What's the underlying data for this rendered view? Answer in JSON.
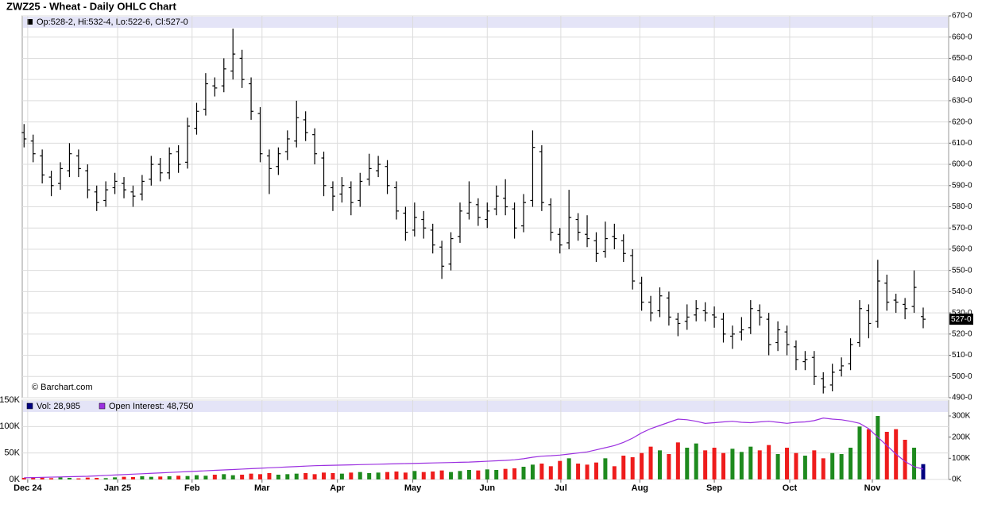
{
  "chart_data": [
    {
      "type": "ohlc",
      "title": "ZWZ25 - Wheat - Daily OHLC Chart",
      "header": "Op:528-2, Hi:532-4, Lo:522-6, Cl:527-0",
      "watermark": "© Barchart.com",
      "color": "#000000",
      "open": [
        615,
        611,
        604,
        594,
        591,
        597,
        604,
        597,
        587,
        583,
        589,
        591,
        587,
        586,
        593,
        600,
        596,
        606,
        601,
        617,
        626,
        637,
        637,
        644,
        650,
        638,
        624,
        604,
        599,
        606,
        611,
        621,
        614,
        603,
        589,
        586,
        589,
        583,
        593,
        597,
        599,
        589,
        577,
        569,
        574,
        569,
        561,
        553,
        566,
        577,
        581,
        574,
        579,
        584,
        579,
        571,
        583,
        606,
        581,
        567,
        563,
        574,
        567,
        564,
        559,
        566,
        564,
        557,
        544,
        535,
        531,
        537,
        527,
        526,
        529,
        531,
        529,
        527,
        519,
        521,
        523,
        531,
        527,
        516,
        521,
        514,
        507,
        509,
        499,
        496,
        503,
        506,
        516,
        531,
        526,
        544,
        536,
        534,
        533,
        528.25
      ],
      "high": [
        619,
        614,
        607,
        597,
        601,
        610,
        607,
        600,
        590,
        592,
        596,
        594,
        590,
        595,
        604,
        603,
        608,
        609,
        622,
        629,
        643,
        641,
        650,
        664,
        654,
        641,
        627,
        607,
        608,
        616,
        630,
        625,
        617,
        606,
        592,
        594,
        592,
        596,
        605,
        604,
        602,
        592,
        580,
        582,
        578,
        572,
        564,
        568,
        582,
        592,
        584,
        582,
        590,
        593,
        582,
        586,
        616,
        609,
        584,
        570,
        588,
        577,
        576,
        568,
        573,
        572,
        567,
        560,
        547,
        538,
        542,
        540,
        530,
        534,
        536,
        535,
        533,
        530,
        524,
        528,
        536,
        534,
        530,
        526,
        524,
        517,
        512,
        512,
        502,
        506,
        509,
        518,
        536,
        534,
        555,
        548,
        539,
        537,
        550,
        532.5
      ],
      "low": [
        608,
        601,
        591,
        585,
        588,
        594,
        594,
        584,
        578,
        580,
        586,
        584,
        580,
        583,
        590,
        592,
        593,
        596,
        598,
        614,
        623,
        632,
        634,
        640,
        636,
        621,
        601,
        586,
        595,
        602,
        608,
        611,
        600,
        585,
        578,
        582,
        576,
        580,
        590,
        594,
        586,
        574,
        564,
        566,
        565,
        558,
        546,
        550,
        563,
        574,
        571,
        570,
        576,
        576,
        565,
        568,
        580,
        578,
        564,
        558,
        560,
        564,
        561,
        554,
        556,
        560,
        554,
        541,
        531,
        526,
        528,
        524,
        519,
        522,
        526,
        526,
        523,
        516,
        513,
        517,
        520,
        524,
        510,
        512,
        510,
        503,
        503,
        496,
        492,
        493,
        500,
        503,
        514,
        518,
        523,
        531,
        530,
        527,
        530,
        522.75
      ],
      "close": [
        612,
        605,
        595,
        590,
        598,
        605,
        598,
        588,
        582,
        588,
        592,
        588,
        585,
        592,
        600,
        596,
        605,
        600,
        618,
        625,
        638,
        636,
        645,
        652,
        640,
        625,
        605,
        598,
        605,
        612,
        622,
        615,
        605,
        590,
        585,
        590,
        582,
        592,
        598,
        600,
        590,
        578,
        568,
        575,
        570,
        562,
        552,
        565,
        578,
        582,
        575,
        578,
        585,
        580,
        570,
        582,
        608,
        582,
        568,
        562,
        575,
        568,
        565,
        558,
        565,
        565,
        558,
        545,
        535,
        530,
        538,
        528,
        525,
        528,
        532,
        530,
        528,
        520,
        520,
        522,
        532,
        528,
        515,
        522,
        515,
        508,
        508,
        500,
        495,
        502,
        505,
        515,
        532,
        525,
        545,
        535,
        535,
        532,
        542,
        527
      ],
      "last_price": {
        "value": 527,
        "label": "527-0"
      },
      "ylim": [
        490,
        670
      ],
      "yticks": [
        {
          "value": 490,
          "label": "490-0"
        },
        {
          "value": 500,
          "label": "500-0"
        },
        {
          "value": 510,
          "label": "510-0"
        },
        {
          "value": 520,
          "label": "520-0"
        },
        {
          "value": 530,
          "label": "530-0"
        },
        {
          "value": 540,
          "label": "540-0"
        },
        {
          "value": 550,
          "label": "550-0"
        },
        {
          "value": 560,
          "label": "560-0"
        },
        {
          "value": 570,
          "label": "570-0"
        },
        {
          "value": 580,
          "label": "580-0"
        },
        {
          "value": 590,
          "label": "590-0"
        },
        {
          "value": 600,
          "label": "600-0"
        },
        {
          "value": 610,
          "label": "610-0"
        },
        {
          "value": 620,
          "label": "620-0"
        },
        {
          "value": 630,
          "label": "630-0"
        },
        {
          "value": 640,
          "label": "640-0"
        },
        {
          "value": 650,
          "label": "650-0"
        },
        {
          "value": 660,
          "label": "660-0"
        },
        {
          "value": 670,
          "label": "670-0"
        }
      ],
      "xlim": [
        -0.2,
        101.8
      ],
      "grid": true
    },
    {
      "type": "volume",
      "up_color": "#1e8a1e",
      "down_color": "#ee1c1c",
      "series": [
        {
          "name": "Vol: 28,985",
          "color": "#000080",
          "values": [
            3000,
            4000,
            3500,
            2500,
            4000,
            3000,
            2000,
            3500,
            3000,
            2500,
            4000,
            5000,
            4500,
            6000,
            5000,
            5500,
            6000,
            7000,
            6500,
            8000,
            7000,
            9000,
            10000,
            8000,
            9000,
            11000,
            10000,
            12000,
            9000,
            10000,
            11000,
            12000,
            10000,
            13000,
            12000,
            11000,
            13000,
            14000,
            12000,
            13000,
            14000,
            15000,
            13000,
            16000,
            14000,
            15000,
            17000,
            14000,
            16000,
            18000,
            17000,
            19000,
            18000,
            20000,
            21000,
            24000,
            28000,
            30000,
            25000,
            35000,
            40000,
            30000,
            28000,
            32000,
            40000,
            25000,
            45000,
            42000,
            50000,
            62000,
            55000,
            48000,
            70000,
            60000,
            68000,
            55000,
            60000,
            50000,
            58000,
            52000,
            62000,
            55000,
            65000,
            48000,
            60000,
            50000,
            45000,
            55000,
            40000,
            50000,
            48000,
            60000,
            100000,
            95000,
            120000,
            90000,
            95000,
            75000,
            60000,
            28985
          ]
        },
        {
          "name": "Open Interest: 48,750",
          "color": "#9b30e0",
          "axis": "y2",
          "values": [
            8000,
            9000,
            10000,
            11000,
            12000,
            13000,
            14000,
            15000,
            17000,
            19000,
            21000,
            23000,
            25000,
            27000,
            29000,
            31000,
            33000,
            35000,
            37000,
            39000,
            41000,
            43000,
            45000,
            47000,
            49000,
            51000,
            53000,
            55000,
            57000,
            59000,
            61000,
            63000,
            65000,
            66000,
            67000,
            68000,
            69000,
            70000,
            71000,
            72000,
            73000,
            74000,
            75000,
            76000,
            77000,
            78000,
            79000,
            80000,
            81000,
            82000,
            84000,
            86000,
            88000,
            90000,
            93000,
            98000,
            105000,
            110000,
            112000,
            115000,
            120000,
            125000,
            130000,
            140000,
            150000,
            160000,
            175000,
            195000,
            220000,
            240000,
            255000,
            270000,
            285000,
            282000,
            275000,
            265000,
            268000,
            272000,
            275000,
            270000,
            268000,
            272000,
            275000,
            270000,
            265000,
            270000,
            272000,
            278000,
            290000,
            285000,
            282000,
            275000,
            265000,
            240000,
            200000,
            160000,
            120000,
            85000,
            60000,
            48750
          ]
        }
      ],
      "ylim": [
        0,
        150000
      ],
      "yticks": [
        {
          "value": 0,
          "label": "0K"
        },
        {
          "value": 50000,
          "label": "50K"
        },
        {
          "value": 100000,
          "label": "100K"
        },
        {
          "value": 150000,
          "label": "150K"
        }
      ],
      "y2lim": [
        0,
        375000
      ],
      "y2ticks": [
        {
          "value": 0,
          "label": "0K"
        },
        {
          "value": 100000,
          "label": "100K"
        },
        {
          "value": 200000,
          "label": "200K"
        },
        {
          "value": 300000,
          "label": "300K"
        }
      ],
      "xlim": [
        -0.2,
        101.8
      ],
      "xticks": [
        {
          "value": 0.4,
          "label": "Dec 24"
        },
        {
          "value": 10.3,
          "label": "Jan 25"
        },
        {
          "value": 18.5,
          "label": "Feb"
        },
        {
          "value": 26.2,
          "label": "Mar"
        },
        {
          "value": 34.5,
          "label": "Apr"
        },
        {
          "value": 42.8,
          "label": "May"
        },
        {
          "value": 51,
          "label": "Jun"
        },
        {
          "value": 59.1,
          "label": "Jul"
        },
        {
          "value": 67.8,
          "label": "Aug"
        },
        {
          "value": 76,
          "label": "Sep"
        },
        {
          "value": 84.3,
          "label": "Oct"
        },
        {
          "value": 93.4,
          "label": "Nov"
        }
      ],
      "grid": true
    }
  ]
}
